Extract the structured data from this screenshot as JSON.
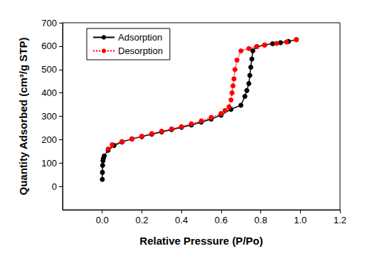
{
  "chart_data": {
    "type": "line",
    "x_label": "Relative Pressure (P/Po)",
    "y_label": "Quantity Adsorbed (cm³/g STP)",
    "xlim": [
      -0.2,
      1.2
    ],
    "xticks": [
      {
        "value": 0,
        "label": "0.0"
      },
      0.2,
      0.4,
      0.6,
      0.8,
      {
        "value": 1,
        "label": "1.0"
      },
      1.2
    ],
    "ylim": [
      -100,
      700
    ],
    "yticks": [
      0,
      100,
      200,
      300,
      400,
      500,
      600,
      700
    ],
    "grid": false,
    "legend": "upper left",
    "series": [
      {
        "name": "Adsorption",
        "color": "#000000",
        "marker": "circle",
        "line_style": "solid",
        "x": [
          0.0005,
          0.001,
          0.002,
          0.004,
          0.006,
          0.01,
          0.03,
          0.06,
          0.1,
          0.15,
          0.2,
          0.25,
          0.3,
          0.35,
          0.4,
          0.45,
          0.5,
          0.55,
          0.6,
          0.65,
          0.7,
          0.72,
          0.73,
          0.74,
          0.745,
          0.75,
          0.755,
          0.76,
          0.78,
          0.82,
          0.86,
          0.9,
          0.94,
          0.98
        ],
        "values": [
          30,
          60,
          90,
          110,
          120,
          130,
          155,
          175,
          190,
          203,
          213,
          223,
          233,
          243,
          253,
          263,
          275,
          288,
          305,
          330,
          347,
          385,
          410,
          440,
          475,
          510,
          545,
          580,
          598,
          605,
          610,
          615,
          620,
          628
        ]
      },
      {
        "name": "Desorption",
        "color": "#ff0000",
        "marker": "circle",
        "line_style": "dotted",
        "x": [
          0.98,
          0.93,
          0.88,
          0.82,
          0.78,
          0.74,
          0.7,
          0.68,
          0.67,
          0.665,
          0.66,
          0.655,
          0.65,
          0.64,
          0.62,
          0.6,
          0.55,
          0.5,
          0.45,
          0.4,
          0.35,
          0.3,
          0.25,
          0.2,
          0.15,
          0.1,
          0.05,
          0.03
        ],
        "values": [
          628,
          618,
          612,
          605,
          598,
          590,
          580,
          540,
          500,
          460,
          430,
          400,
          370,
          340,
          325,
          312,
          295,
          280,
          268,
          256,
          246,
          236,
          226,
          215,
          203,
          192,
          178,
          160
        ]
      }
    ]
  }
}
